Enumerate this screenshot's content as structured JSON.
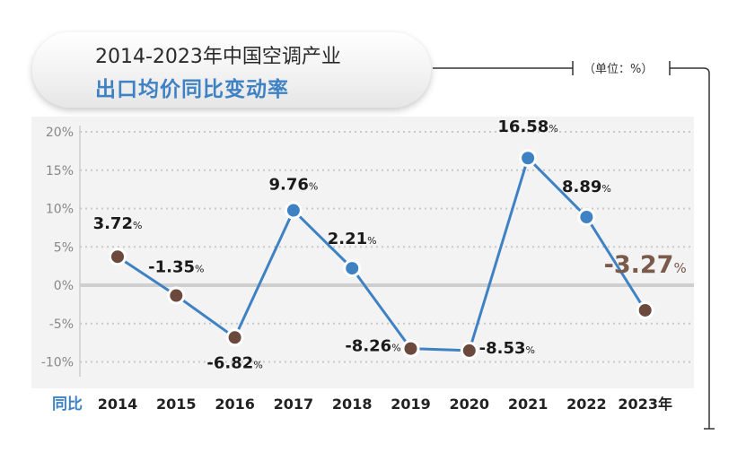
{
  "title_line1": "2014-2023年中国空调产业",
  "title_line2": "出口均价同比变动率",
  "unit": "（单位：%）",
  "x_axis_label": "同比",
  "colors": {
    "line": "#3f82c4",
    "positive_marker": "#3f82c4",
    "negative_marker": "#6b4a3d",
    "highlight_label": "#7a5a4a"
  },
  "chart_data": {
    "type": "line",
    "categories": [
      "2014",
      "2015",
      "2016",
      "2017",
      "2018",
      "2019",
      "2020",
      "2021",
      "2022",
      "2023年"
    ],
    "series": [
      {
        "values": [
          3.72,
          -1.35,
          -6.82,
          9.76,
          2.21,
          -8.26,
          -8.53,
          16.58,
          8.89,
          -3.27
        ]
      }
    ],
    "data_labels": [
      "3.72",
      "-1.35",
      "-6.82",
      "9.76",
      "2.21",
      "-8.26",
      "-8.53",
      "16.58",
      "8.89",
      "-3.27"
    ],
    "yticks": [
      "20%",
      "15%",
      "10%",
      "5%",
      "0%",
      "-5%",
      "-10%"
    ],
    "ytick_values": [
      20,
      15,
      10,
      5,
      0,
      -5,
      -10
    ],
    "ylim": [
      -10,
      20
    ],
    "grid": true,
    "label_unit": "%"
  }
}
